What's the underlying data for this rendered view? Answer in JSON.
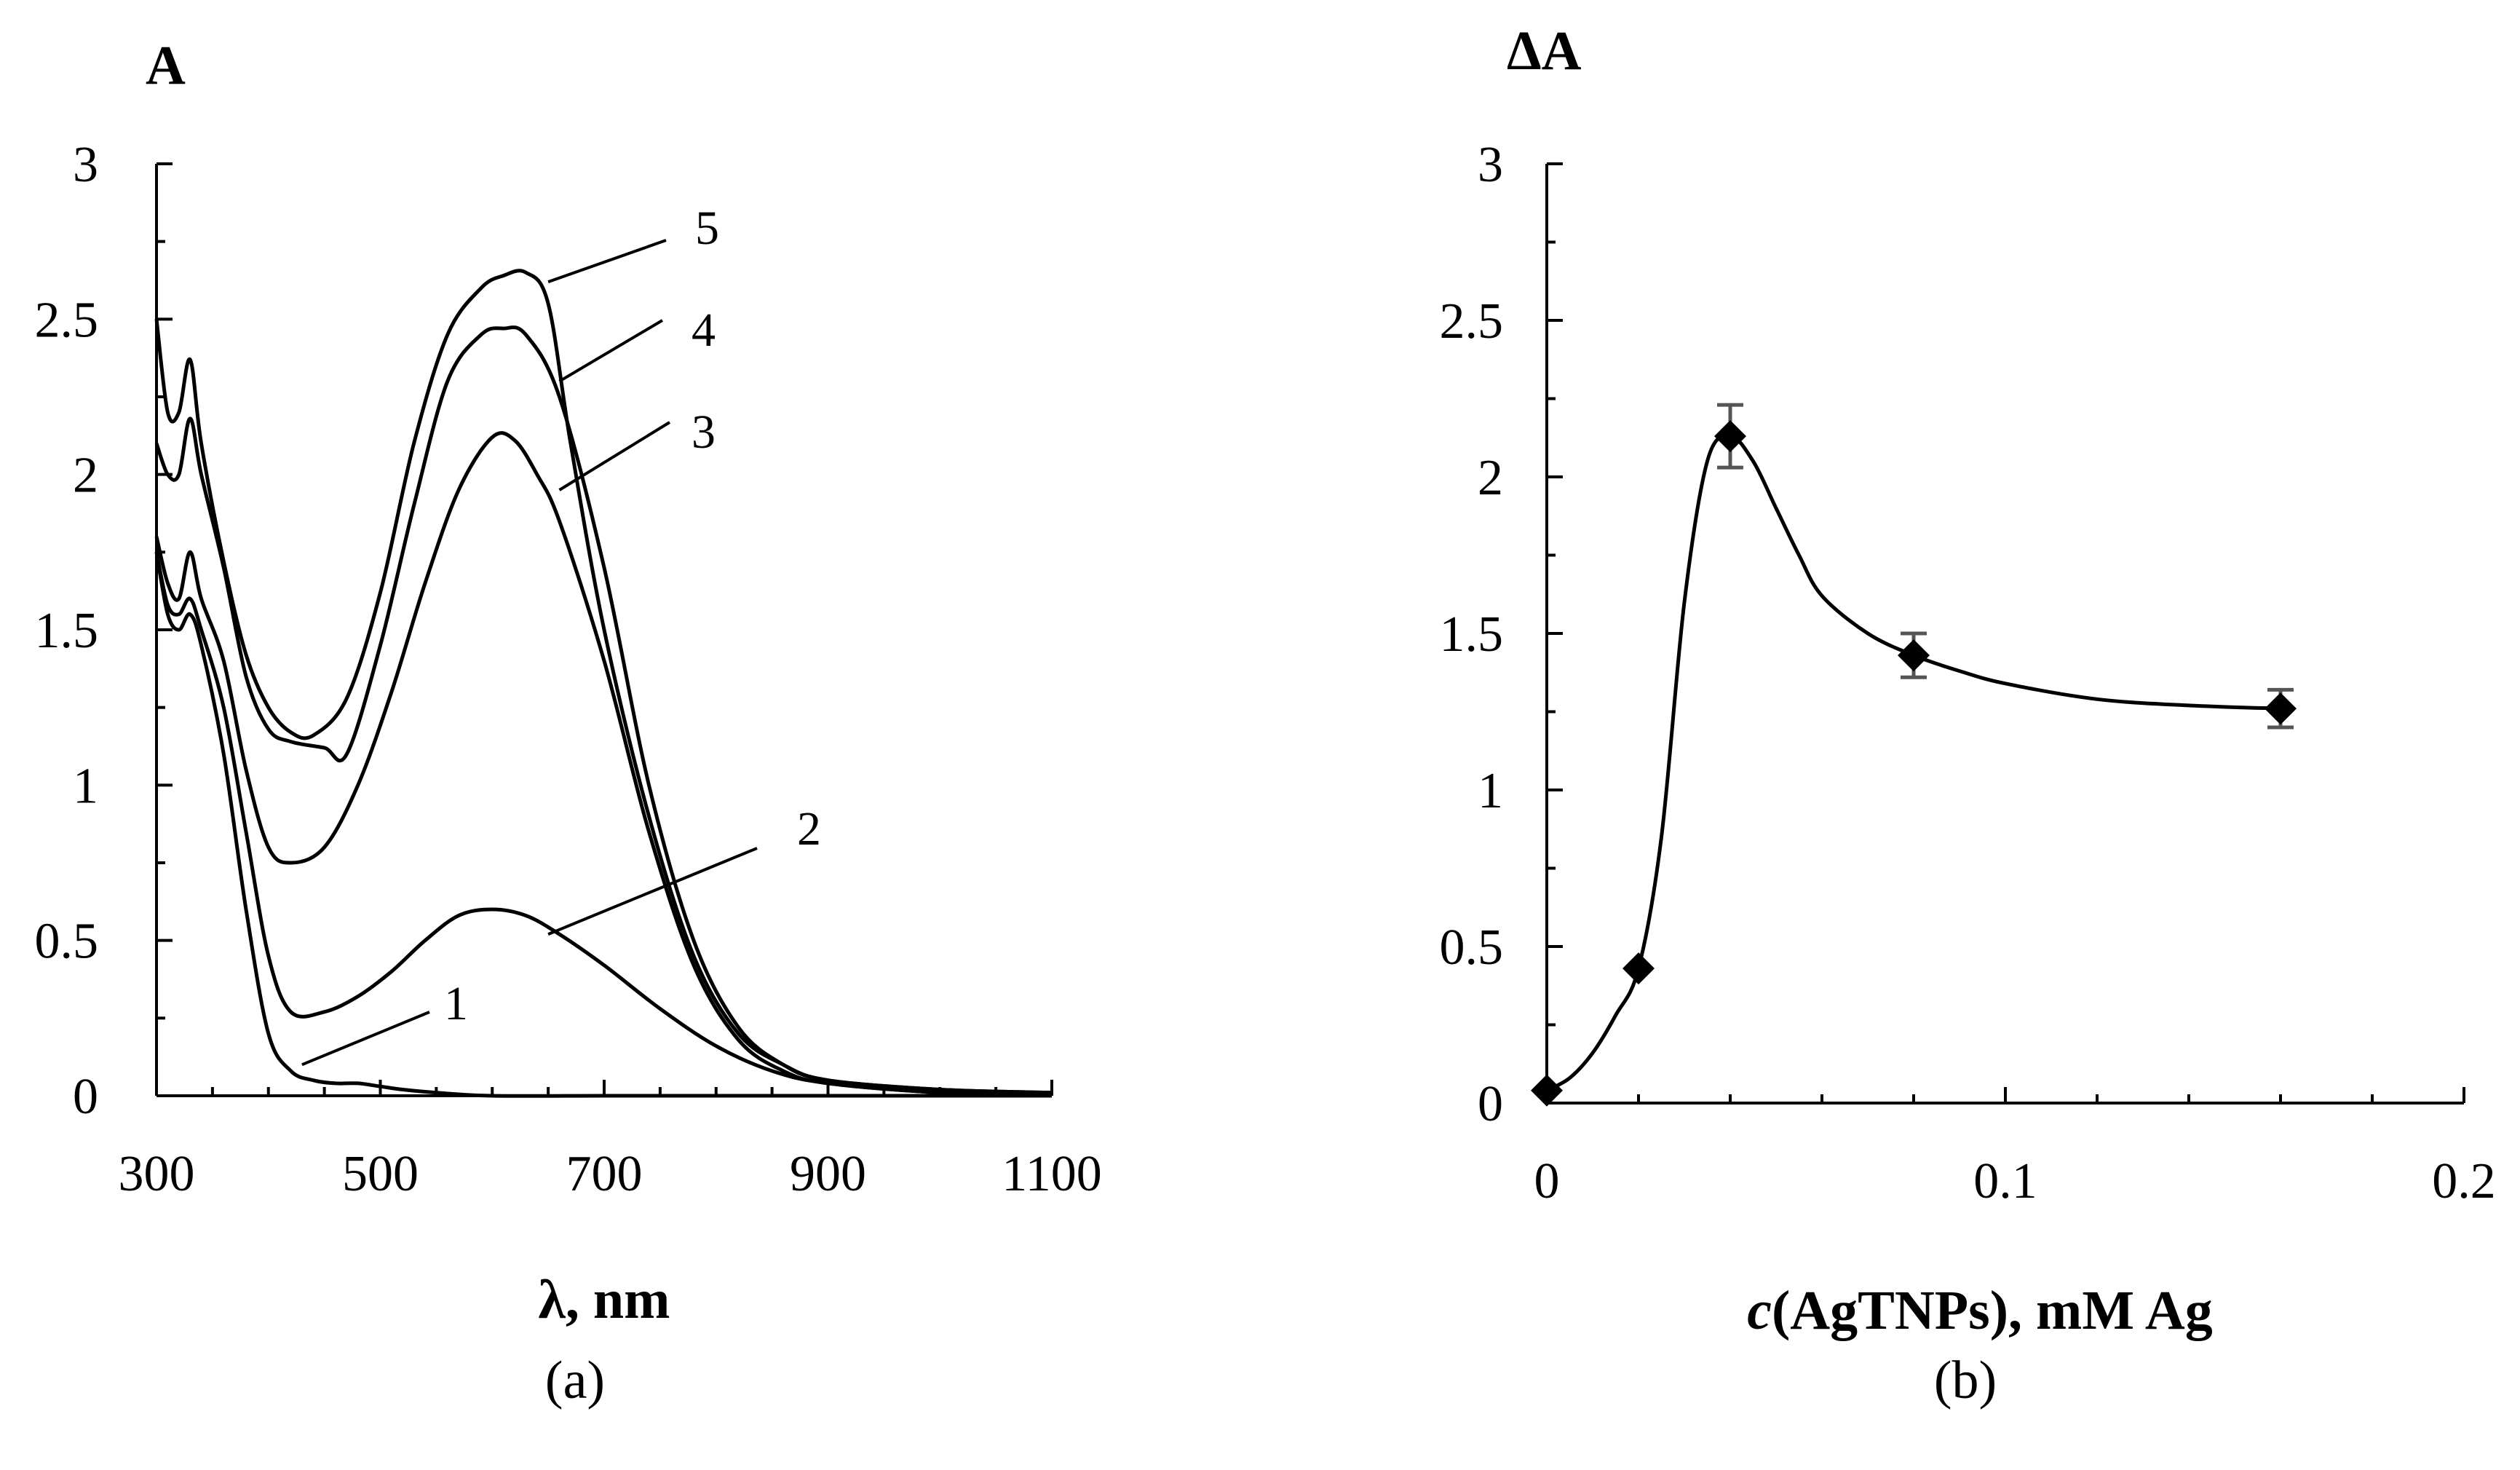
{
  "chart_data": [
    {
      "panel": "(a)",
      "type": "line",
      "title": "",
      "ylabel": "A",
      "xlabel": "λ, nm",
      "xlim": [
        300,
        1100
      ],
      "ylim": [
        0,
        3
      ],
      "xticks": [
        300,
        500,
        700,
        900,
        1100
      ],
      "xtick_labels": [
        "300",
        "500",
        "700",
        "900",
        "1100"
      ],
      "yticks": [
        0,
        0.5,
        1,
        1.5,
        2,
        2.5,
        3
      ],
      "ytick_labels": [
        "0",
        "0.5",
        "1",
        "1.5",
        "2",
        "2.5",
        "3"
      ],
      "grid": false,
      "series": [
        {
          "name": "1",
          "x": [
            300,
            310,
            320,
            330,
            340,
            360,
            380,
            400,
            420,
            440,
            460,
            480,
            500,
            520,
            550,
            600,
            700,
            800,
            900,
            1000,
            1100
          ],
          "y": [
            1.75,
            1.55,
            1.5,
            1.55,
            1.45,
            1.1,
            0.6,
            0.2,
            0.08,
            0.05,
            0.04,
            0.04,
            0.03,
            0.02,
            0.01,
            0.0,
            0.0,
            0.0,
            0.0,
            0.0,
            0.0
          ],
          "label_pos": {
            "x": 430,
            "y": 0.1
          }
        },
        {
          "name": "2",
          "x": [
            300,
            310,
            320,
            330,
            340,
            360,
            380,
            400,
            420,
            450,
            480,
            510,
            540,
            570,
            600,
            630,
            660,
            700,
            750,
            800,
            850,
            900,
            1000,
            1100
          ],
          "y": [
            1.75,
            1.58,
            1.55,
            1.6,
            1.5,
            1.25,
            0.85,
            0.45,
            0.27,
            0.27,
            0.32,
            0.4,
            0.5,
            0.58,
            0.6,
            0.58,
            0.52,
            0.42,
            0.28,
            0.16,
            0.08,
            0.04,
            0.01,
            0.0
          ],
          "label_pos": {
            "x": 650,
            "y": 0.52
          }
        },
        {
          "name": "3",
          "x": [
            300,
            310,
            320,
            330,
            340,
            360,
            380,
            400,
            420,
            450,
            480,
            510,
            540,
            570,
            600,
            620,
            640,
            660,
            700,
            740,
            780,
            820,
            860,
            900,
            1000,
            1100
          ],
          "y": [
            1.8,
            1.65,
            1.6,
            1.75,
            1.6,
            1.4,
            1.05,
            0.8,
            0.75,
            0.8,
            1.0,
            1.3,
            1.65,
            1.95,
            2.12,
            2.11,
            2.0,
            1.85,
            1.4,
            0.85,
            0.42,
            0.18,
            0.08,
            0.04,
            0.01,
            0.0
          ],
          "label_pos": {
            "x": 660,
            "y": 1.95
          }
        },
        {
          "name": "4",
          "x": [
            300,
            310,
            320,
            330,
            340,
            360,
            380,
            400,
            420,
            450,
            470,
            500,
            530,
            560,
            590,
            610,
            630,
            660,
            700,
            740,
            780,
            820,
            860,
            900,
            1000,
            1100
          ],
          "y": [
            2.1,
            2.0,
            2.0,
            2.18,
            2.0,
            1.7,
            1.35,
            1.18,
            1.14,
            1.12,
            1.1,
            1.45,
            1.9,
            2.3,
            2.45,
            2.47,
            2.45,
            2.25,
            1.7,
            1.0,
            0.5,
            0.22,
            0.1,
            0.05,
            0.02,
            0.01
          ],
          "label_pos": {
            "x": 660,
            "y": 2.3
          }
        },
        {
          "name": "5",
          "x": [
            300,
            310,
            320,
            330,
            340,
            360,
            380,
            400,
            420,
            440,
            470,
            500,
            530,
            560,
            590,
            610,
            630,
            650,
            670,
            700,
            740,
            780,
            820,
            860,
            900,
            1000,
            1100
          ],
          "y": [
            2.5,
            2.2,
            2.2,
            2.37,
            2.1,
            1.72,
            1.42,
            1.25,
            1.17,
            1.16,
            1.28,
            1.62,
            2.1,
            2.45,
            2.6,
            2.64,
            2.65,
            2.55,
            2.1,
            1.5,
            0.9,
            0.45,
            0.2,
            0.1,
            0.05,
            0.02,
            0.01
          ],
          "label_pos": {
            "x": 650,
            "y": 2.62
          }
        }
      ],
      "series_labels": [
        "1",
        "2",
        "3",
        "4",
        "5"
      ]
    },
    {
      "panel": "(b)",
      "type": "scatter",
      "title": "",
      "ylabel": "ΔA",
      "xlabel": "c(AgTNPs), mM Ag",
      "xlabel_italic": "c",
      "xlabel_rest": "(AgTNPs), mM Ag",
      "xlim": [
        0,
        0.2
      ],
      "ylim": [
        0,
        3
      ],
      "xticks": [
        0,
        0.1,
        0.2
      ],
      "xtick_labels": [
        "0",
        "0.1",
        "0.2"
      ],
      "yticks": [
        0,
        0.5,
        1,
        1.5,
        2,
        2.5,
        3
      ],
      "ytick_labels": [
        "0",
        "0.5",
        "1",
        "1.5",
        "2",
        "2.5",
        "3"
      ],
      "grid": false,
      "points": [
        {
          "x": 0,
          "y": 0.04,
          "err": 0.0
        },
        {
          "x": 0.02,
          "y": 0.43,
          "err": 0.0
        },
        {
          "x": 0.04,
          "y": 2.13,
          "err": 0.1
        },
        {
          "x": 0.08,
          "y": 1.43,
          "err": 0.07
        },
        {
          "x": 0.16,
          "y": 1.26,
          "err": 0.06
        }
      ],
      "smooth_curve": {
        "x": [
          0,
          0.005,
          0.01,
          0.015,
          0.02,
          0.025,
          0.03,
          0.035,
          0.04,
          0.045,
          0.05,
          0.055,
          0.06,
          0.07,
          0.08,
          0.09,
          0.1,
          0.12,
          0.14,
          0.16
        ],
        "y": [
          0.04,
          0.08,
          0.16,
          0.28,
          0.43,
          0.85,
          1.6,
          2.05,
          2.13,
          2.05,
          1.9,
          1.75,
          1.62,
          1.5,
          1.43,
          1.38,
          1.34,
          1.29,
          1.27,
          1.26
        ]
      }
    }
  ],
  "captions": {
    "a": "(a)",
    "b": "(b)"
  }
}
